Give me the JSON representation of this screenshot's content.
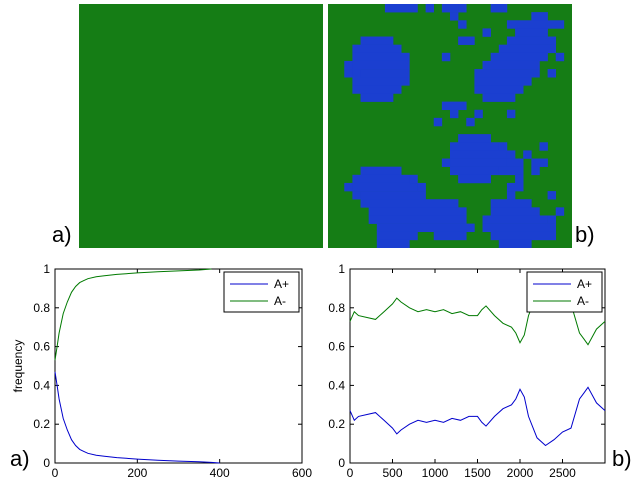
{
  "labels": {
    "grid_a": "a)",
    "grid_b": "b)",
    "chart_a": "a)",
    "chart_b": "b)"
  },
  "colors": {
    "grid_background": "#157d15",
    "grid_patch": "#1b3fd0",
    "line_a_plus": "#0000cc",
    "line_a_minus": "#007a00"
  },
  "grids": {
    "size": 30,
    "a_patches": [],
    "b_patches": [
      [
        7,
        0,
        4,
        1
      ],
      [
        12,
        0,
        1,
        1
      ],
      [
        14,
        0,
        2,
        1
      ],
      [
        15,
        1,
        1,
        1
      ],
      [
        16,
        0,
        1,
        1
      ],
      [
        16,
        2,
        1,
        1
      ],
      [
        20,
        0,
        2,
        1
      ],
      [
        25,
        1,
        2,
        1
      ],
      [
        22,
        2,
        7,
        1
      ],
      [
        4,
        4,
        4,
        1
      ],
      [
        3,
        5,
        6,
        1
      ],
      [
        3,
        6,
        7,
        1
      ],
      [
        3,
        7,
        7,
        1
      ],
      [
        2,
        8,
        8,
        1
      ],
      [
        3,
        9,
        7,
        1
      ],
      [
        3,
        10,
        6,
        1
      ],
      [
        4,
        11,
        4,
        1
      ],
      [
        3,
        8,
        1,
        1
      ],
      [
        2,
        7,
        1,
        1
      ],
      [
        19,
        3,
        1,
        1
      ],
      [
        16,
        4,
        2,
        1
      ],
      [
        23,
        3,
        4,
        1
      ],
      [
        22,
        4,
        6,
        1
      ],
      [
        21,
        5,
        7,
        1
      ],
      [
        20,
        6,
        7,
        1
      ],
      [
        19,
        7,
        7,
        1
      ],
      [
        18,
        8,
        8,
        1
      ],
      [
        18,
        9,
        7,
        1
      ],
      [
        18,
        10,
        6,
        1
      ],
      [
        19,
        11,
        4,
        1
      ],
      [
        14,
        6,
        1,
        1
      ],
      [
        27,
        8,
        1,
        1
      ],
      [
        28,
        6,
        1,
        1
      ],
      [
        14,
        12,
        3,
        1
      ],
      [
        15,
        13,
        1,
        1
      ],
      [
        13,
        14,
        1,
        1
      ],
      [
        18,
        13,
        1,
        1
      ],
      [
        17,
        14,
        1,
        1
      ],
      [
        22,
        13,
        1,
        1
      ],
      [
        16,
        16,
        4,
        1
      ],
      [
        15,
        17,
        6,
        1
      ],
      [
        15,
        18,
        7,
        1
      ],
      [
        15,
        19,
        7,
        1
      ],
      [
        15,
        20,
        6,
        1
      ],
      [
        16,
        21,
        4,
        1
      ],
      [
        14,
        19,
        1,
        1
      ],
      [
        21,
        17,
        1,
        1
      ],
      [
        22,
        18,
        1,
        1
      ],
      [
        22,
        19,
        2,
        1
      ],
      [
        21,
        20,
        3,
        1
      ],
      [
        23,
        21,
        1,
        1
      ],
      [
        24,
        18,
        1,
        1
      ],
      [
        25,
        20,
        1,
        1
      ],
      [
        26,
        17,
        1,
        1
      ],
      [
        25,
        19,
        2,
        1
      ],
      [
        4,
        20,
        5,
        1
      ],
      [
        3,
        21,
        7,
        1
      ],
      [
        3,
        22,
        8,
        1
      ],
      [
        4,
        23,
        8,
        1
      ],
      [
        4,
        24,
        12,
        1
      ],
      [
        5,
        25,
        12,
        1
      ],
      [
        5,
        26,
        12,
        1
      ],
      [
        6,
        27,
        12,
        1
      ],
      [
        6,
        28,
        5,
        1
      ],
      [
        13,
        28,
        4,
        1
      ],
      [
        6,
        29,
        4,
        1
      ],
      [
        3,
        23,
        1,
        1
      ],
      [
        2,
        22,
        1,
        1
      ],
      [
        11,
        22,
        1,
        1
      ],
      [
        10,
        21,
        1,
        1
      ],
      [
        22,
        22,
        2,
        1
      ],
      [
        22,
        23,
        1,
        1
      ],
      [
        20,
        24,
        5,
        1
      ],
      [
        20,
        25,
        6,
        1
      ],
      [
        19,
        26,
        8,
        1
      ],
      [
        19,
        27,
        9,
        1
      ],
      [
        20,
        28,
        8,
        1
      ],
      [
        21,
        29,
        4,
        1
      ],
      [
        27,
        23,
        1,
        1
      ],
      [
        27,
        26,
        1,
        1
      ],
      [
        28,
        25,
        1,
        1
      ]
    ]
  },
  "chart_data": [
    {
      "type": "line",
      "xlim": [
        0,
        600
      ],
      "ylim": [
        0,
        1
      ],
      "xticks": [
        "0",
        "200",
        "400",
        "600"
      ],
      "yticks": [
        "0",
        "0.2",
        "0.4",
        "0.6",
        "0.8",
        "1"
      ],
      "ylabel": "frequency",
      "xlabel": "",
      "title": "",
      "legend": "top-right",
      "series": [
        {
          "name": "A+",
          "color": "#0000cc",
          "x": [
            0,
            5,
            10,
            20,
            30,
            40,
            50,
            60,
            70,
            80,
            100,
            120,
            150,
            200,
            250,
            300,
            350,
            380,
            400
          ],
          "y": [
            0.47,
            0.4,
            0.33,
            0.23,
            0.17,
            0.12,
            0.09,
            0.07,
            0.06,
            0.05,
            0.04,
            0.035,
            0.028,
            0.02,
            0.014,
            0.01,
            0.006,
            0.003,
            0.0
          ]
        },
        {
          "name": "A-",
          "color": "#007a00",
          "x": [
            0,
            5,
            10,
            20,
            30,
            40,
            50,
            60,
            70,
            80,
            100,
            120,
            150,
            200,
            250,
            300,
            350,
            380
          ],
          "y": [
            0.53,
            0.6,
            0.67,
            0.77,
            0.83,
            0.88,
            0.91,
            0.93,
            0.94,
            0.95,
            0.96,
            0.965,
            0.972,
            0.98,
            0.986,
            0.99,
            0.995,
            1.0
          ]
        }
      ]
    },
    {
      "type": "line",
      "xlim": [
        0,
        3000
      ],
      "ylim": [
        0,
        1
      ],
      "xticks": [
        "0",
        "500",
        "1000",
        "1500",
        "2000",
        "2500"
      ],
      "yticks": [
        "0",
        "0.2",
        "0.4",
        "0.6",
        "0.8",
        "1"
      ],
      "ylabel": "",
      "xlabel": "",
      "title": "",
      "legend": "top-right",
      "series": [
        {
          "name": "A+",
          "color": "#0000cc",
          "x": [
            0,
            50,
            100,
            200,
            300,
            400,
            500,
            550,
            600,
            700,
            800,
            900,
            1000,
            1100,
            1200,
            1300,
            1400,
            1500,
            1550,
            1600,
            1700,
            1800,
            1900,
            1950,
            2000,
            2050,
            2100,
            2200,
            2300,
            2400,
            2500,
            2600,
            2700,
            2750,
            2800,
            2900,
            3000
          ],
          "y": [
            0.27,
            0.22,
            0.24,
            0.25,
            0.26,
            0.22,
            0.18,
            0.15,
            0.17,
            0.2,
            0.22,
            0.21,
            0.22,
            0.21,
            0.23,
            0.22,
            0.24,
            0.24,
            0.21,
            0.19,
            0.24,
            0.28,
            0.3,
            0.33,
            0.38,
            0.34,
            0.24,
            0.13,
            0.09,
            0.12,
            0.16,
            0.18,
            0.33,
            0.36,
            0.39,
            0.31,
            0.27
          ]
        },
        {
          "name": "A-",
          "color": "#007a00",
          "x": [
            0,
            50,
            100,
            200,
            300,
            400,
            500,
            550,
            600,
            700,
            800,
            900,
            1000,
            1100,
            1200,
            1300,
            1400,
            1500,
            1550,
            1600,
            1700,
            1800,
            1900,
            1950,
            2000,
            2050,
            2100,
            2200,
            2300,
            2400,
            2500,
            2600,
            2700,
            2750,
            2800,
            2900,
            3000
          ],
          "y": [
            0.73,
            0.78,
            0.76,
            0.75,
            0.74,
            0.78,
            0.82,
            0.85,
            0.83,
            0.8,
            0.78,
            0.79,
            0.78,
            0.79,
            0.77,
            0.78,
            0.76,
            0.76,
            0.79,
            0.81,
            0.76,
            0.72,
            0.7,
            0.67,
            0.62,
            0.66,
            0.76,
            0.87,
            0.91,
            0.88,
            0.84,
            0.82,
            0.67,
            0.64,
            0.61,
            0.69,
            0.73
          ]
        }
      ]
    }
  ]
}
